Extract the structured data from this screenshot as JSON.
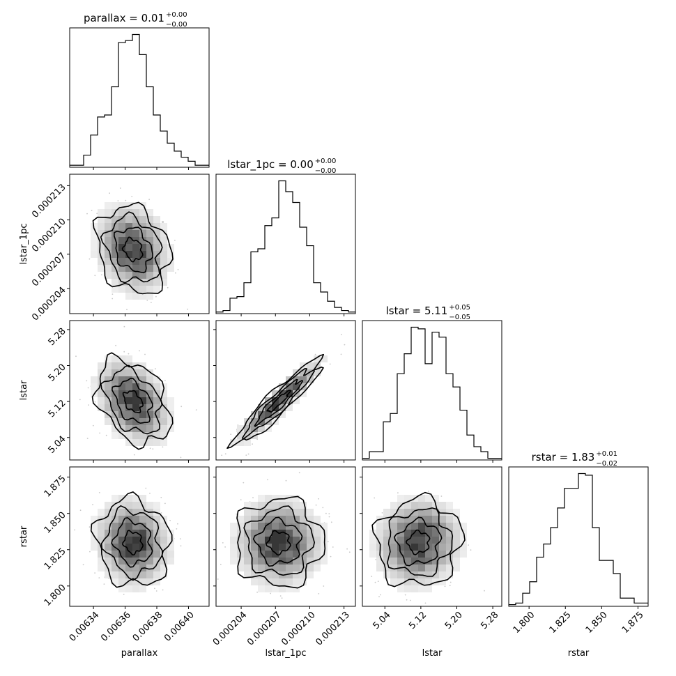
{
  "chart_data": {
    "type": "corner",
    "parameters": [
      {
        "name": "parallax",
        "title": "parallax = 0.01",
        "title_base": "parallax = 0.01",
        "title_upper": "+0.00",
        "title_lower": "−0.00",
        "xlabel": "parallax",
        "range": [
          0.006325,
          0.006413
        ],
        "ticks": [
          0.00634,
          0.00636,
          0.00638,
          0.0064
        ],
        "tick_labels": [
          "0.00634",
          "0.00636",
          "0.00638",
          "0.00640"
        ],
        "hist": [
          1,
          1,
          6,
          16,
          25,
          26,
          40,
          62,
          63,
          66,
          56,
          40,
          26,
          18,
          12,
          8,
          5,
          3,
          1,
          1
        ]
      },
      {
        "name": "lstar_1pc",
        "title": "lstar_1pc = 0.00",
        "title_base": "lstar_1pc = 0.00",
        "title_upper": "+0.00",
        "title_lower": "−0.00",
        "xlabel": "lstar_1pc",
        "range": [
          0.0002018,
          0.000214
        ],
        "ticks": [
          0.000204,
          0.000207,
          0.00021,
          0.000213
        ],
        "tick_labels": [
          "0.000204",
          "0.000207",
          "0.000210",
          "0.000213"
        ],
        "hist": [
          1,
          2,
          10,
          11,
          20,
          40,
          42,
          57,
          62,
          86,
          79,
          72,
          56,
          44,
          20,
          14,
          8,
          4,
          2,
          1
        ]
      },
      {
        "name": "lstar",
        "title": "lstar = 5.11",
        "title_base": "lstar = 5.11",
        "title_upper": "+0.05",
        "title_lower": "−0.05",
        "xlabel": "lstar",
        "range": [
          4.99,
          5.3
        ],
        "ticks": [
          5.04,
          5.12,
          5.2,
          5.28
        ],
        "tick_labels": [
          "5.04",
          "5.12",
          "5.20",
          "5.28"
        ],
        "hist": [
          1,
          5,
          5,
          23,
          28,
          52,
          64,
          80,
          79,
          58,
          77,
          74,
          52,
          44,
          30,
          15,
          8,
          5,
          1,
          1
        ]
      },
      {
        "name": "rstar",
        "title": "rstar = 1.83",
        "title_base": "rstar = 1.83",
        "title_upper": "+0.01",
        "title_lower": "−0.02",
        "xlabel": "rstar",
        "range": [
          1.786,
          1.882
        ],
        "ticks": [
          1.8,
          1.825,
          1.85,
          1.875
        ],
        "tick_labels": [
          "1.800",
          "1.825",
          "1.850",
          "1.875"
        ],
        "hist": [
          1,
          2,
          8,
          15,
          30,
          38,
          48,
          60,
          72,
          72,
          81,
          80,
          48,
          28,
          28,
          20,
          5,
          5,
          2,
          2
        ]
      }
    ],
    "pairs": [
      {
        "x": "parallax",
        "y": "lstar_1pc",
        "center": [
          0.006365,
          0.0002074
        ],
        "spread": [
          1.15e-05,
          1.9e-06
        ],
        "corr": -0.2
      },
      {
        "x": "parallax",
        "y": "lstar",
        "center": [
          0.006365,
          5.12
        ],
        "spread": [
          1.15e-05,
          0.047
        ],
        "corr": -0.35
      },
      {
        "x": "parallax",
        "y": "rstar",
        "center": [
          0.006365,
          1.83
        ],
        "spread": [
          1.15e-05,
          0.015
        ],
        "corr": -0.1
      },
      {
        "x": "lstar_1pc",
        "y": "lstar",
        "center": [
          0.0002073,
          5.12
        ],
        "spread": [
          1.9e-06,
          0.047
        ],
        "corr": 0.93
      },
      {
        "x": "lstar_1pc",
        "y": "rstar",
        "center": [
          0.0002073,
          1.83
        ],
        "spread": [
          1.9e-06,
          0.015
        ],
        "corr": 0.0
      },
      {
        "x": "lstar",
        "y": "rstar",
        "center": [
          5.115,
          1.83
        ],
        "spread": [
          0.047,
          0.015
        ],
        "corr": 0.05
      }
    ],
    "contour_levels_sigma": [
      0.5,
      1.0,
      1.5,
      2.0
    ],
    "line_color": "#000000",
    "density_color": "#000000",
    "point_color": "#c8c8c8"
  }
}
